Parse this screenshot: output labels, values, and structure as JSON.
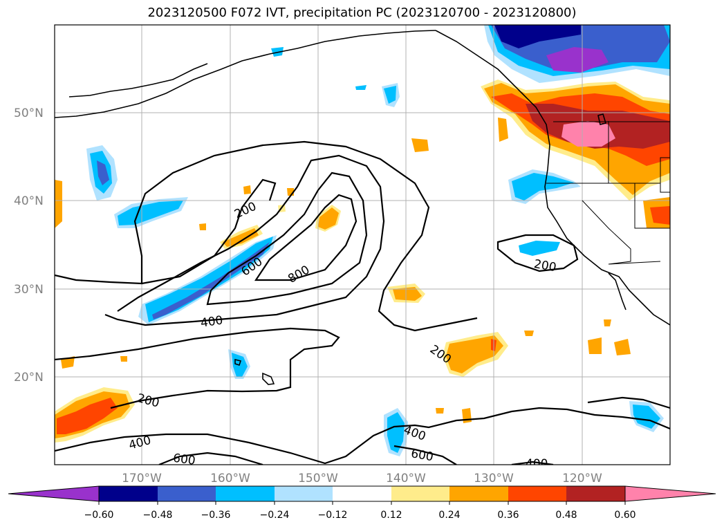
{
  "title": "2023120500 F072 IVT, precipitation PC (2023120700 - 2023120800)",
  "lat_labels": [
    "50°N",
    "40°N",
    "30°N",
    "20°N"
  ],
  "lon_labels": [
    "170°W",
    "160°W",
    "150°W",
    "140°W",
    "130°W",
    "120°W"
  ],
  "contour_labels": [
    "200",
    "200",
    "200",
    "200",
    "400",
    "400",
    "400",
    "400",
    "600",
    "600",
    "600",
    "800"
  ],
  "colorbar": {
    "ticks": [
      "−0.60",
      "−0.48",
      "−0.36",
      "−0.24",
      "−0.12",
      "0.12",
      "0.24",
      "0.36",
      "0.48",
      "0.60"
    ],
    "colors": [
      "#9932cc",
      "#00008b",
      "#3a5fcd",
      "#00bfff",
      "#b0e2ff",
      "#ffffff",
      "#ffec8b",
      "#ffa500",
      "#ff4500",
      "#b22222",
      "#ff82ab"
    ]
  },
  "palette": {
    "n060": "#9932cc",
    "n048": "#00008b",
    "n036": "#3a5fcd",
    "n024": "#00bfff",
    "n012": "#b0e2ff",
    "p012": "#ffec8b",
    "p024": "#ffa500",
    "p036": "#ff4500",
    "p048": "#b22222",
    "p060": "#ff82ab"
  }
}
